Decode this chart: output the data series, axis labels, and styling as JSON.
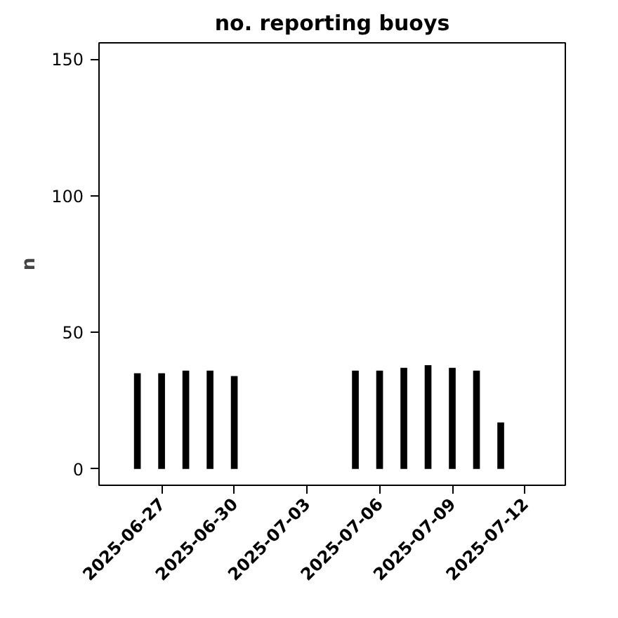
{
  "chart_data": {
    "type": "bar",
    "title": "no. reporting buoys",
    "ylabel": "n",
    "x": [
      "2025-06-26",
      "2025-06-27",
      "2025-06-28",
      "2025-06-29",
      "2025-06-30",
      "2025-07-01",
      "2025-07-02",
      "2025-07-03",
      "2025-07-04",
      "2025-07-05",
      "2025-07-06",
      "2025-07-07",
      "2025-07-08",
      "2025-07-09",
      "2025-07-10",
      "2025-07-11",
      "2025-07-12"
    ],
    "values": [
      35,
      35,
      36,
      36,
      34,
      0,
      0,
      0,
      0,
      36,
      36,
      37,
      38,
      37,
      36,
      17,
      0
    ],
    "color": "#000000",
    "xlim": [
      "2025-06-24T10:00",
      "2025-07-13T16:00"
    ],
    "xticks": [
      {
        "value": "2025-06-27",
        "label": "2025-06-27"
      },
      {
        "value": "2025-06-30",
        "label": "2025-06-30"
      },
      {
        "value": "2025-07-03",
        "label": "2025-07-03"
      },
      {
        "value": "2025-07-06",
        "label": "2025-07-06"
      },
      {
        "value": "2025-07-09",
        "label": "2025-07-09"
      },
      {
        "value": "2025-07-12",
        "label": "2025-07-12"
      }
    ],
    "ylim": [
      -6,
      156
    ],
    "yticks": [
      0,
      50,
      100,
      150
    ],
    "grid": false
  }
}
